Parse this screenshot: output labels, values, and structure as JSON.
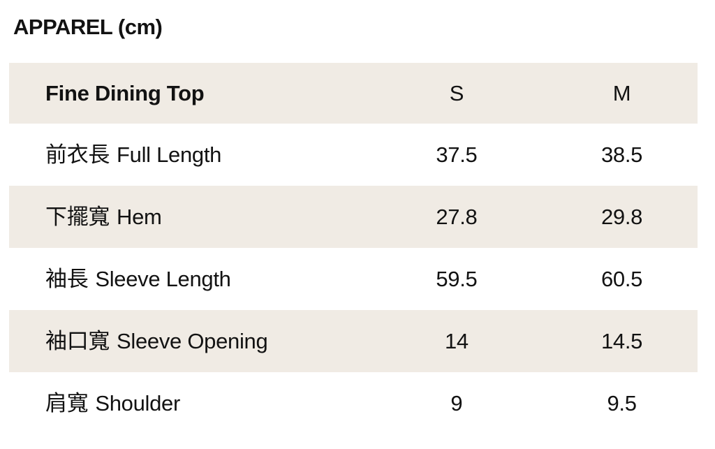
{
  "title": "APPAREL (cm)",
  "colors": {
    "background": "#FFFFFF",
    "row_highlight": "#F0EBE4",
    "text": "#121212"
  },
  "table": {
    "product": "Fine Dining Top",
    "sizes": [
      "S",
      "M"
    ],
    "rows": [
      {
        "label_zh": "前衣長",
        "label_en": "Full Length",
        "s": "37.5",
        "m": "38.5"
      },
      {
        "label_zh": "下擺寬",
        "label_en": "Hem",
        "s": "27.8",
        "m": "29.8"
      },
      {
        "label_zh": "袖長",
        "label_en": "Sleeve Length",
        "s": "59.5",
        "m": "60.5"
      },
      {
        "label_zh": "袖口寬",
        "label_en": "Sleeve Opening",
        "s": "14",
        "m": "14.5"
      },
      {
        "label_zh": "肩寬",
        "label_en": "Shoulder",
        "s": "9",
        "m": "9.5"
      }
    ]
  }
}
